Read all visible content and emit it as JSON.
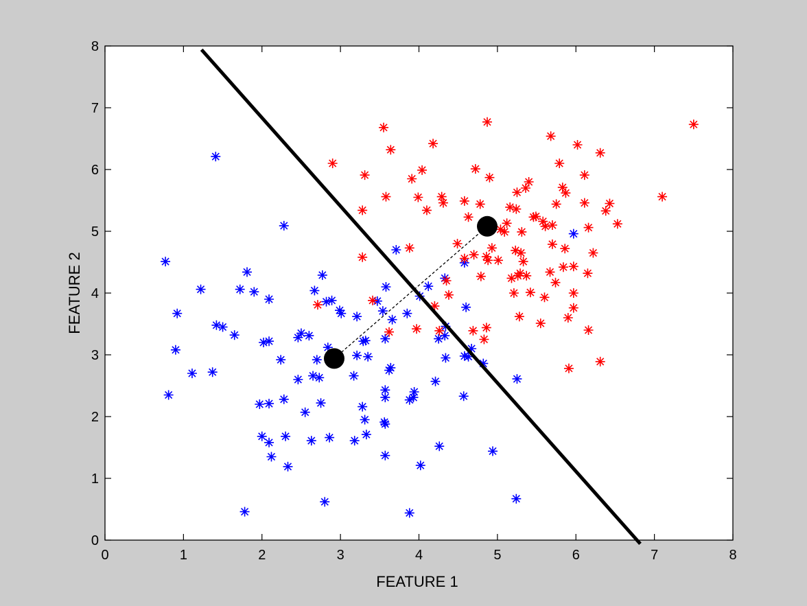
{
  "chart_data": {
    "type": "scatter",
    "title": "",
    "xlabel": "FEATURE 1",
    "ylabel": "FEATURE 2",
    "xlim": [
      0,
      8
    ],
    "ylim": [
      0,
      8
    ],
    "xticks": [
      "0",
      "1",
      "2",
      "3",
      "4",
      "5",
      "6",
      "7",
      "8"
    ],
    "yticks": [
      "0",
      "1",
      "2",
      "3",
      "4",
      "5",
      "6",
      "7",
      "8"
    ],
    "grid": false,
    "colors": {
      "figure_bg": "#cccccc",
      "axes_bg": "#ffffff",
      "class_blue": "#0000ff",
      "class_red": "#ff0000",
      "line": "#000000"
    },
    "series": [
      {
        "color": "#0000ff",
        "marker": "asterisk",
        "points": [
          [
            0.77,
            4.51
          ],
          [
            1.41,
            6.21
          ],
          [
            0.92,
            3.67
          ],
          [
            0.9,
            3.08
          ],
          [
            1.11,
            2.7
          ],
          [
            1.37,
            2.72
          ],
          [
            0.81,
            2.35
          ],
          [
            1.22,
            4.06
          ],
          [
            1.42,
            3.48
          ],
          [
            1.5,
            3.45
          ],
          [
            1.65,
            3.32
          ],
          [
            1.72,
            4.06
          ],
          [
            1.81,
            4.34
          ],
          [
            1.9,
            4.02
          ],
          [
            2.09,
            3.9
          ],
          [
            2.28,
            5.09
          ],
          [
            2.02,
            3.2
          ],
          [
            2.09,
            3.22
          ],
          [
            2.24,
            2.92
          ],
          [
            1.97,
            2.2
          ],
          [
            2.09,
            2.21
          ],
          [
            2.28,
            2.28
          ],
          [
            2.0,
            1.68
          ],
          [
            2.09,
            1.58
          ],
          [
            2.12,
            1.35
          ],
          [
            2.3,
            1.68
          ],
          [
            2.33,
            1.19
          ],
          [
            1.78,
            0.46
          ],
          [
            2.46,
            3.28
          ],
          [
            2.5,
            3.35
          ],
          [
            2.6,
            3.31
          ],
          [
            2.46,
            2.6
          ],
          [
            2.55,
            2.07
          ],
          [
            2.65,
            2.66
          ],
          [
            2.73,
            2.63
          ],
          [
            2.75,
            2.22
          ],
          [
            2.63,
            1.61
          ],
          [
            2.86,
            1.66
          ],
          [
            2.8,
            0.62
          ],
          [
            2.67,
            4.04
          ],
          [
            2.77,
            4.29
          ],
          [
            2.82,
            3.86
          ],
          [
            2.89,
            3.88
          ],
          [
            2.99,
            3.72
          ],
          [
            3.01,
            3.67
          ],
          [
            2.84,
            3.12
          ],
          [
            2.7,
            2.92
          ],
          [
            3.21,
            3.62
          ],
          [
            3.29,
            3.22
          ],
          [
            3.32,
            3.23
          ],
          [
            3.21,
            2.99
          ],
          [
            3.35,
            2.97
          ],
          [
            3.17,
            2.66
          ],
          [
            3.28,
            2.16
          ],
          [
            3.31,
            1.95
          ],
          [
            3.33,
            1.71
          ],
          [
            3.18,
            1.61
          ],
          [
            3.47,
            3.87
          ],
          [
            3.54,
            3.71
          ],
          [
            3.58,
            4.1
          ],
          [
            3.71,
            4.7
          ],
          [
            3.66,
            3.57
          ],
          [
            3.57,
            3.26
          ],
          [
            3.64,
            2.79
          ],
          [
            3.62,
            2.75
          ],
          [
            3.57,
            2.43
          ],
          [
            3.57,
            2.31
          ],
          [
            3.56,
            1.91
          ],
          [
            3.57,
            1.88
          ],
          [
            3.57,
            1.37
          ],
          [
            3.88,
            0.44
          ],
          [
            3.85,
            3.67
          ],
          [
            3.93,
            2.31
          ],
          [
            3.94,
            2.4
          ],
          [
            3.88,
            2.27
          ],
          [
            4.01,
            3.95
          ],
          [
            4.12,
            4.11
          ],
          [
            4.21,
            2.57
          ],
          [
            4.26,
            1.52
          ],
          [
            4.02,
            1.21
          ],
          [
            4.25,
            3.26
          ],
          [
            4.33,
            3.31
          ],
          [
            4.34,
            2.95
          ],
          [
            4.33,
            4.24
          ],
          [
            4.34,
            3.46
          ],
          [
            4.58,
            4.49
          ],
          [
            4.6,
            3.77
          ],
          [
            4.58,
            2.98
          ],
          [
            4.63,
            2.97
          ],
          [
            4.57,
            2.33
          ],
          [
            4.82,
            2.86
          ],
          [
            4.94,
            1.44
          ],
          [
            5.25,
            2.61
          ],
          [
            5.24,
            0.67
          ],
          [
            5.97,
            4.96
          ],
          [
            4.67,
            3.1
          ]
        ]
      },
      {
        "color": "#ff0000",
        "marker": "asterisk",
        "points": [
          [
            2.9,
            6.1
          ],
          [
            3.31,
            5.91
          ],
          [
            3.28,
            5.34
          ],
          [
            3.28,
            4.58
          ],
          [
            2.71,
            3.81
          ],
          [
            3.41,
            3.88
          ],
          [
            3.55,
            6.68
          ],
          [
            3.64,
            6.32
          ],
          [
            3.58,
            5.56
          ],
          [
            3.62,
            3.37
          ],
          [
            3.88,
            4.73
          ],
          [
            3.91,
            5.85
          ],
          [
            4.04,
            5.99
          ],
          [
            3.99,
            5.55
          ],
          [
            4.1,
            5.34
          ],
          [
            4.18,
            6.42
          ],
          [
            4.29,
            5.56
          ],
          [
            4.31,
            5.46
          ],
          [
            4.2,
            3.79
          ],
          [
            4.35,
            4.2
          ],
          [
            4.38,
            3.97
          ],
          [
            3.97,
            3.42
          ],
          [
            4.26,
            3.39
          ],
          [
            4.49,
            4.8
          ],
          [
            4.58,
            5.49
          ],
          [
            4.58,
            4.56
          ],
          [
            4.63,
            5.23
          ],
          [
            4.7,
            4.62
          ],
          [
            4.72,
            6.01
          ],
          [
            4.78,
            5.44
          ],
          [
            4.69,
            3.39
          ],
          [
            4.79,
            4.27
          ],
          [
            4.83,
            3.25
          ],
          [
            4.87,
            6.77
          ],
          [
            4.9,
            5.87
          ],
          [
            4.86,
            4.59
          ],
          [
            4.86,
            3.44
          ],
          [
            4.88,
            4.53
          ],
          [
            4.93,
            4.73
          ],
          [
            5.01,
            4.53
          ],
          [
            5.04,
            5.03
          ],
          [
            5.09,
            4.99
          ],
          [
            5.16,
            5.39
          ],
          [
            5.12,
            5.13
          ],
          [
            5.18,
            4.24
          ],
          [
            5.23,
            4.69
          ],
          [
            5.21,
            4.0
          ],
          [
            5.25,
            5.63
          ],
          [
            5.26,
            4.28
          ],
          [
            5.31,
            4.99
          ],
          [
            5.29,
            4.32
          ],
          [
            5.28,
            3.62
          ],
          [
            5.3,
            4.65
          ],
          [
            5.33,
            4.51
          ],
          [
            5.36,
            5.7
          ],
          [
            5.37,
            4.28
          ],
          [
            5.4,
            5.8
          ],
          [
            5.42,
            4.01
          ],
          [
            5.46,
            5.23
          ],
          [
            5.55,
            3.51
          ],
          [
            5.58,
            5.16
          ],
          [
            5.61,
            5.08
          ],
          [
            5.6,
            3.93
          ],
          [
            5.68,
            6.54
          ],
          [
            5.67,
            4.34
          ],
          [
            5.7,
            5.1
          ],
          [
            5.7,
            4.79
          ],
          [
            5.75,
            5.44
          ],
          [
            5.74,
            4.17
          ],
          [
            5.79,
            6.1
          ],
          [
            5.83,
            5.71
          ],
          [
            5.87,
            5.62
          ],
          [
            5.84,
            4.42
          ],
          [
            5.86,
            4.72
          ],
          [
            5.9,
            3.6
          ],
          [
            5.91,
            2.78
          ],
          [
            5.97,
            4.43
          ],
          [
            5.97,
            4.0
          ],
          [
            5.97,
            3.76
          ],
          [
            6.02,
            6.4
          ],
          [
            6.11,
            5.91
          ],
          [
            6.11,
            5.46
          ],
          [
            6.16,
            5.06
          ],
          [
            6.15,
            4.32
          ],
          [
            6.16,
            3.4
          ],
          [
            6.22,
            4.65
          ],
          [
            6.31,
            6.27
          ],
          [
            6.31,
            2.89
          ],
          [
            6.38,
            5.33
          ],
          [
            6.43,
            5.45
          ],
          [
            6.53,
            5.12
          ],
          [
            7.1,
            5.56
          ],
          [
            7.5,
            6.73
          ],
          [
            5.24,
            5.36
          ],
          [
            5.49,
            5.24
          ]
        ]
      }
    ],
    "centroids": [
      [
        2.92,
        2.94
      ],
      [
        4.87,
        5.08
      ]
    ],
    "decision_boundary": [
      [
        1.23,
        7.94
      ],
      [
        6.82,
        -0.06
      ]
    ]
  }
}
